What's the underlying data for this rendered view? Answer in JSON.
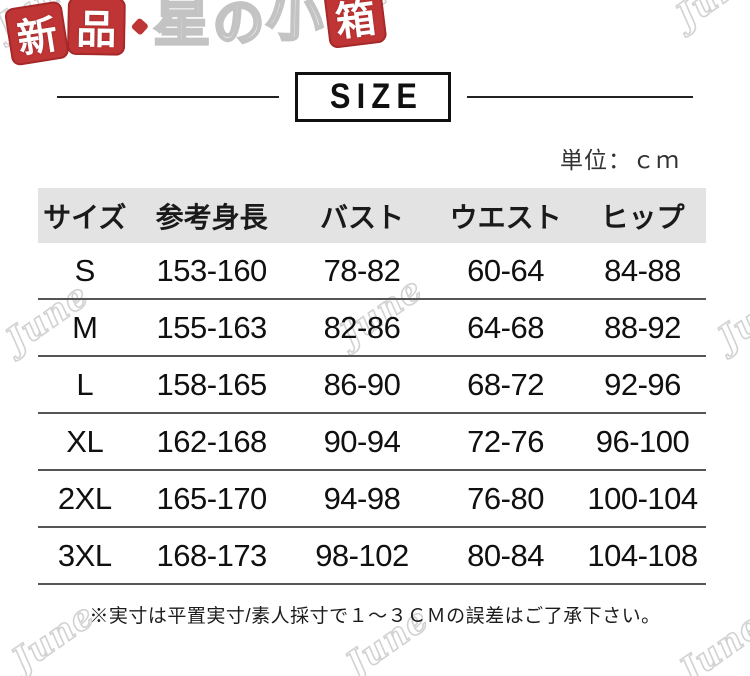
{
  "logo": {
    "chars": [
      "新",
      "品",
      "・",
      "星",
      "の",
      "小",
      "箱"
    ]
  },
  "title": {
    "label": "SIZE"
  },
  "unit_label": "単位：ｃｍ",
  "watermark": {
    "text": "June"
  },
  "table": {
    "headers": [
      "サイズ",
      "参考身長",
      "バスト",
      "ウエスト",
      "ヒップ"
    ],
    "rows": [
      [
        "S",
        "153-160",
        "78-82",
        "60-64",
        "84-88"
      ],
      [
        "M",
        "155-163",
        "82-86",
        "64-68",
        "88-92"
      ],
      [
        "L",
        "158-165",
        "86-90",
        "68-72",
        "92-96"
      ],
      [
        "XL",
        "162-168",
        "90-94",
        "72-76",
        "96-100"
      ],
      [
        "2XL",
        "165-170",
        "94-98",
        "76-80",
        "100-104"
      ],
      [
        "3XL",
        "168-173",
        "98-102",
        "80-84",
        "104-108"
      ]
    ]
  },
  "note": "※実寸は平置実寸/素人採寸で１〜３ＣＭの誤差はご了承下さい。",
  "colors": {
    "accent_red": "#bf3434",
    "header_band": "#e3e3e3",
    "row_line": "#555555",
    "title_border": "#101010",
    "watermark_gray": "#d2d2d2"
  }
}
